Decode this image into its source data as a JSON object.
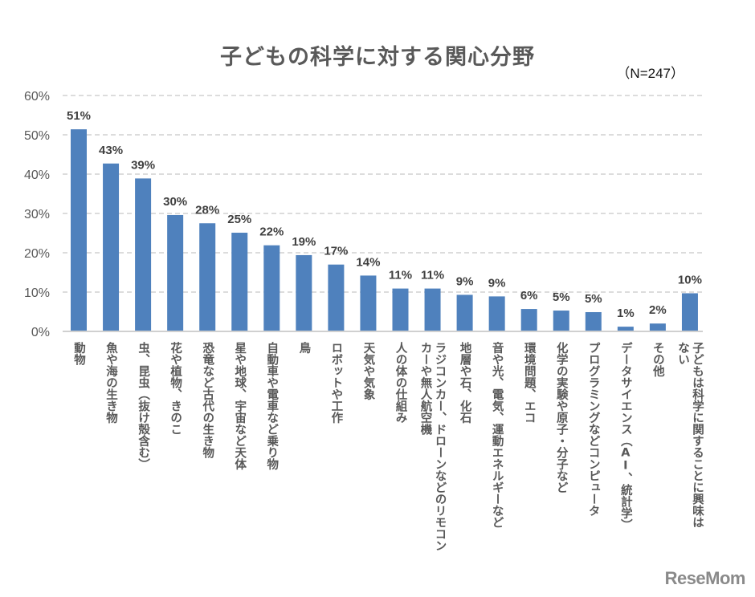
{
  "chart_data": {
    "type": "bar",
    "title": "子どもの科学に対する関心分野",
    "note": "（N=247）",
    "xlabel": "",
    "ylabel": "",
    "ylim": [
      0,
      60
    ],
    "yticks": [
      "0%",
      "10%",
      "20%",
      "30%",
      "40%",
      "50%",
      "60%"
    ],
    "ytick_values": [
      0,
      10,
      20,
      30,
      40,
      50,
      60
    ],
    "grid": true,
    "bar_color": "#4f81bd",
    "categories": [
      "動物",
      "魚や海の生き物",
      "虫、昆虫（抜け殻含む）",
      "花や植物、きのこ",
      "恐竜など古代の生き物",
      "星や地球、宇宙など天体",
      "自動車や電車など乗り物",
      "鳥",
      "ロボットや工作",
      "天気や気象",
      "人の体の仕組み",
      "ラジコンカー、ドローンなどのリモコンカーや無人航空機",
      "地層や石、化石",
      "音や光、電気、運動エネルギーなど",
      "環境問題、エコ",
      "化学の実験や原子・分子など",
      "プログラミングなどコンピュータ",
      "データサイエンス（AI、統計学）",
      "その他",
      "子どもは科学に関することに興味はない"
    ],
    "category_lines": [
      [
        "動物"
      ],
      [
        "魚や海の生き物"
      ],
      [
        "虫、昆虫（抜け殻含む）"
      ],
      [
        "花や植物、きのこ"
      ],
      [
        "恐竜など古代の生き物"
      ],
      [
        "星や地球、宇宙など天体"
      ],
      [
        "自動車や電車など乗り物"
      ],
      [
        "鳥"
      ],
      [
        "ロボットや工作"
      ],
      [
        "天気や気象"
      ],
      [
        "人の体の仕組み"
      ],
      [
        "ラジコンカー、ドローンなどのリモコン",
        "カーや無人航空機"
      ],
      [
        "地層や石、化石"
      ],
      [
        "音や光、電気、運動エネルギーなど"
      ],
      [
        "環境問題、エコ"
      ],
      [
        "化学の実験や原子・分子など"
      ],
      [
        "プログラミングなどコンピュータ"
      ],
      [
        "データサイエンス（AI、統計学）"
      ],
      [
        "その他"
      ],
      [
        "子どもは科学に関することに興味は",
        "ない"
      ]
    ],
    "values": [
      51.4,
      42.7,
      38.9,
      29.6,
      27.5,
      25.1,
      21.9,
      19.4,
      17.0,
      14.2,
      10.9,
      10.9,
      9.3,
      8.9,
      5.7,
      5.3,
      4.9,
      1.2,
      2.0,
      9.7
    ],
    "data_labels": [
      "51%",
      "43%",
      "39%",
      "30%",
      "28%",
      "25%",
      "22%",
      "19%",
      "17%",
      "14%",
      "11%",
      "11%",
      "9%",
      "9%",
      "6%",
      "5%",
      "5%",
      "1%",
      "2%",
      "10%"
    ]
  },
  "watermark": "ReseMom"
}
